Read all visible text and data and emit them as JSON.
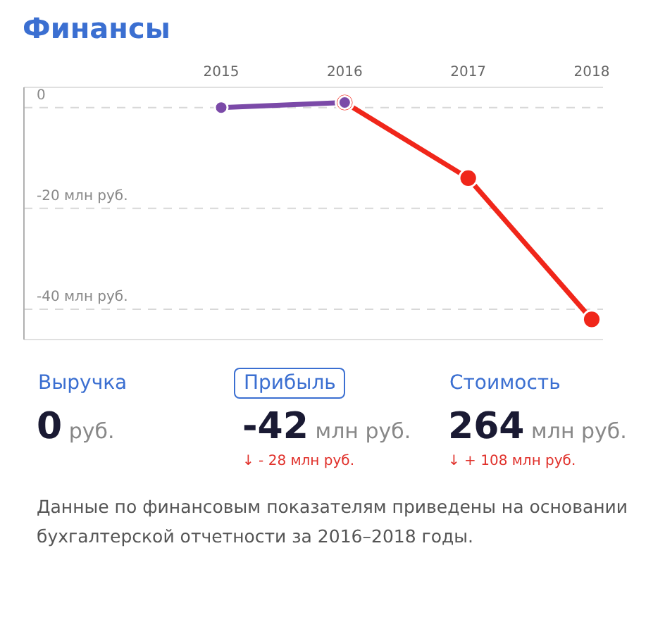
{
  "chart_data": {
    "type": "line",
    "title": "Финансы",
    "categories": [
      "2015",
      "2016",
      "2017",
      "2018"
    ],
    "series": [
      {
        "color": "#7b4aa8",
        "values": [
          0,
          1,
          null,
          null
        ]
      },
      {
        "color": "#f0261a",
        "values": [
          null,
          1,
          -14,
          -42
        ]
      }
    ],
    "yticks": [
      {
        "value": 0,
        "label": "0"
      },
      {
        "value": -20,
        "label": "-20 млн руб."
      },
      {
        "value": -40,
        "label": "-40 млн руб."
      }
    ],
    "ylim": [
      -46,
      4
    ],
    "grid": "y",
    "marker": "circle",
    "line_style": "solid",
    "annotations": [
      "Выручка",
      "0 руб.",
      "Прибыль",
      "-42 млн руб.",
      "↓ - 28 млн руб.",
      "Стоимость",
      "264 млн руб.",
      "↓ + 108 млн руб.",
      "Данные по финансовым показателям приведены на основании бухгалтерской отчетности за 2016–2018 годы."
    ]
  }
}
